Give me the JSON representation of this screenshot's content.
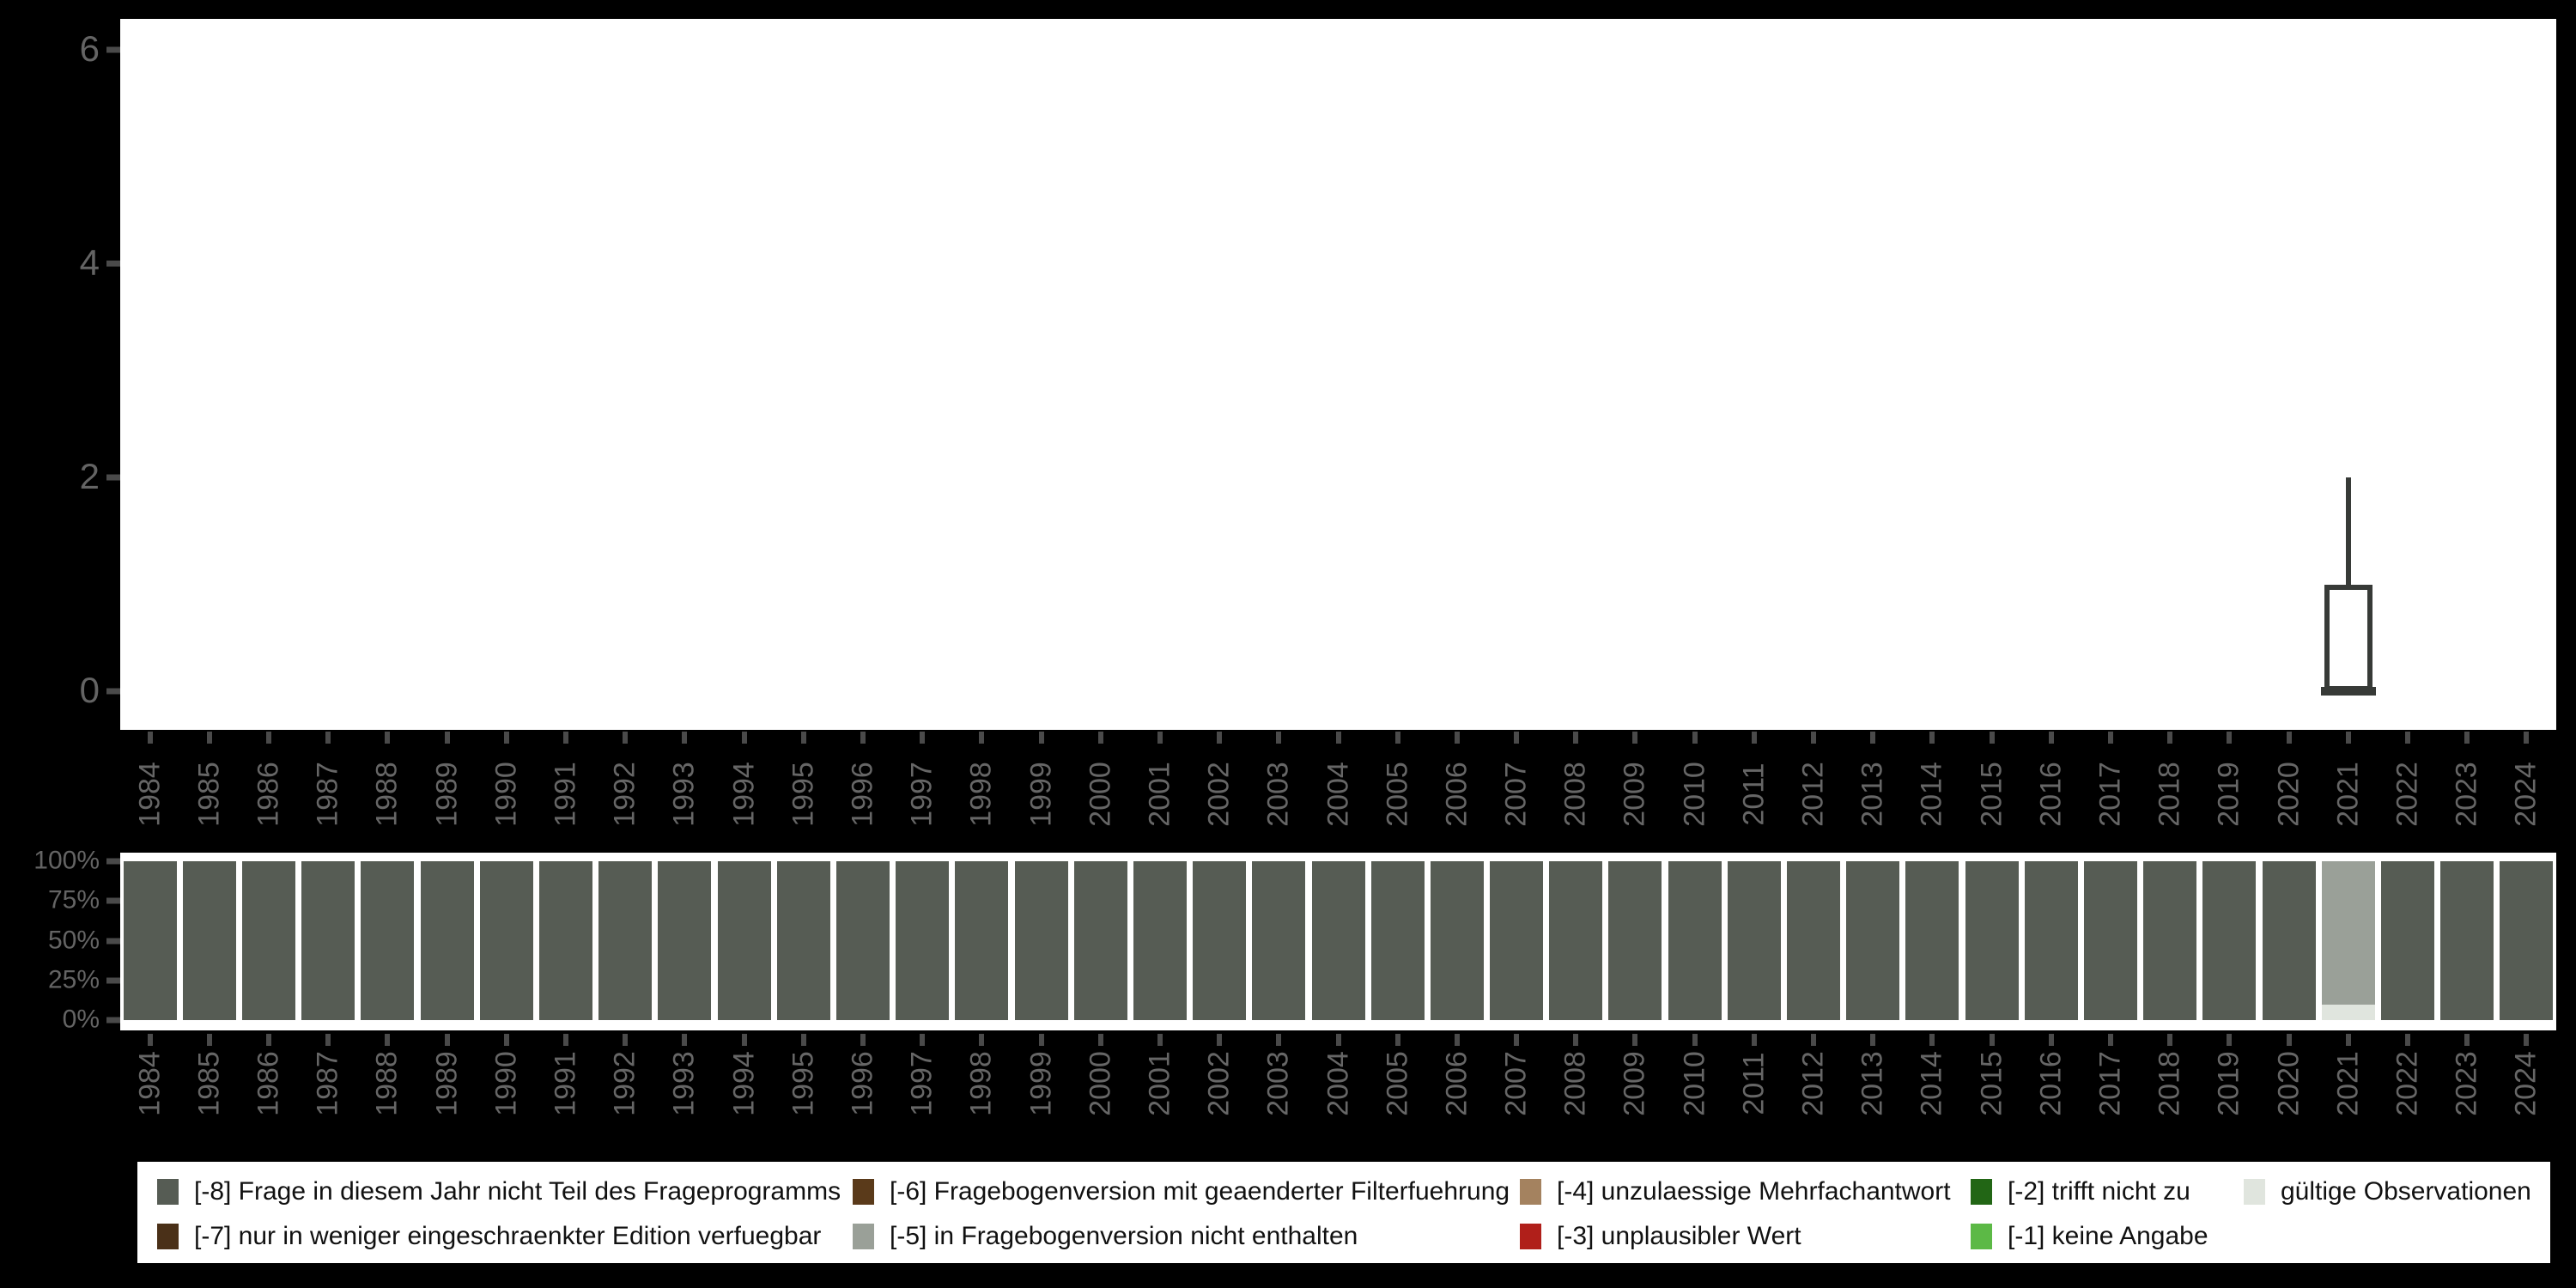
{
  "colors": {
    "background": "#000000",
    "plot_background": "#ffffff",
    "axis_text": "#646464",
    "tick": "#4a4a4a",
    "box_stroke": "#373a37",
    "legend_text": "#111111"
  },
  "legend": {
    "items": [
      {
        "code": "-8",
        "label": "[-8] Frage in diesem Jahr nicht Teil des Frageprogramms",
        "color": "#565c54"
      },
      {
        "code": "-7",
        "label": "[-7] nur in weniger eingeschraenkter Edition verfuegbar",
        "color": "#4a3018"
      },
      {
        "code": "-6",
        "label": "[-6] Fragebogenversion mit geaenderter Filterfuehrung",
        "color": "#5a3a1a"
      },
      {
        "code": "-5",
        "label": "[-5] in Fragebogenversion nicht enthalten",
        "color": "#9aa098"
      },
      {
        "code": "-4",
        "label": "[-4] unzulaessige Mehrfachantwort",
        "color": "#a4825f"
      },
      {
        "code": "-3",
        "label": "[-3] unplausibler Wert",
        "color": "#b01f1a"
      },
      {
        "code": "-2",
        "label": "[-2] trifft nicht zu",
        "color": "#226615"
      },
      {
        "code": "-1",
        "label": "[-1] keine Angabe",
        "color": "#5cb946"
      },
      {
        "code": "valid",
        "label": "gültige Observationen",
        "color": "#e0e5de"
      }
    ]
  },
  "chart_data": [
    {
      "type": "box",
      "title": "",
      "xlabel": "",
      "ylabel": "",
      "categories": [
        "1984",
        "1985",
        "1986",
        "1987",
        "1988",
        "1989",
        "1990",
        "1991",
        "1992",
        "1993",
        "1994",
        "1995",
        "1996",
        "1997",
        "1998",
        "1999",
        "2000",
        "2001",
        "2002",
        "2003",
        "2004",
        "2005",
        "2006",
        "2007",
        "2008",
        "2009",
        "2010",
        "2011",
        "2012",
        "2013",
        "2014",
        "2015",
        "2016",
        "2017",
        "2018",
        "2019",
        "2020",
        "2021",
        "2022",
        "2023",
        "2024"
      ],
      "yticks": [
        0,
        2,
        4,
        6
      ],
      "ylim": [
        0,
        6
      ],
      "grid": false,
      "boxes": [
        {
          "category": "2021",
          "min": 0,
          "q1": 0,
          "median": 0,
          "q3": 1,
          "max": 2
        }
      ]
    },
    {
      "type": "bar",
      "stacked": true,
      "unit": "percent",
      "title": "",
      "xlabel": "",
      "ylabel": "",
      "categories": [
        "1984",
        "1985",
        "1986",
        "1987",
        "1988",
        "1989",
        "1990",
        "1991",
        "1992",
        "1993",
        "1994",
        "1995",
        "1996",
        "1997",
        "1998",
        "1999",
        "2000",
        "2001",
        "2002",
        "2003",
        "2004",
        "2005",
        "2006",
        "2007",
        "2008",
        "2009",
        "2010",
        "2011",
        "2012",
        "2013",
        "2014",
        "2015",
        "2016",
        "2017",
        "2018",
        "2019",
        "2020",
        "2021",
        "2022",
        "2023",
        "2024"
      ],
      "yticks": [
        {
          "label": "0%",
          "value": 0
        },
        {
          "label": "25%",
          "value": 25
        },
        {
          "label": "50%",
          "value": 50
        },
        {
          "label": "75%",
          "value": 75
        },
        {
          "label": "100%",
          "value": 100
        }
      ],
      "ylim": [
        0,
        100
      ],
      "grid": false,
      "legend_position": "bottom",
      "series": [
        {
          "key": "valid",
          "name": "gültige Observationen",
          "color": "#e0e5de",
          "values": [
            0,
            0,
            0,
            0,
            0,
            0,
            0,
            0,
            0,
            0,
            0,
            0,
            0,
            0,
            0,
            0,
            0,
            0,
            0,
            0,
            0,
            0,
            0,
            0,
            0,
            0,
            0,
            0,
            0,
            0,
            0,
            0,
            0,
            0,
            0,
            0,
            0,
            10,
            0,
            0,
            0
          ]
        },
        {
          "key": "-5",
          "name": "[-5] in Fragebogenversion nicht enthalten",
          "color": "#9aa098",
          "values": [
            0,
            0,
            0,
            0,
            0,
            0,
            0,
            0,
            0,
            0,
            0,
            0,
            0,
            0,
            0,
            0,
            0,
            0,
            0,
            0,
            0,
            0,
            0,
            0,
            0,
            0,
            0,
            0,
            0,
            0,
            0,
            0,
            0,
            0,
            0,
            0,
            0,
            90,
            0,
            0,
            0
          ]
        },
        {
          "key": "-8",
          "name": "[-8] Frage in diesem Jahr nicht Teil des Frageprogramms",
          "color": "#565c54",
          "values": [
            100,
            100,
            100,
            100,
            100,
            100,
            100,
            100,
            100,
            100,
            100,
            100,
            100,
            100,
            100,
            100,
            100,
            100,
            100,
            100,
            100,
            100,
            100,
            100,
            100,
            100,
            100,
            100,
            100,
            100,
            100,
            100,
            100,
            100,
            100,
            100,
            100,
            0,
            100,
            100,
            100
          ]
        }
      ]
    }
  ]
}
